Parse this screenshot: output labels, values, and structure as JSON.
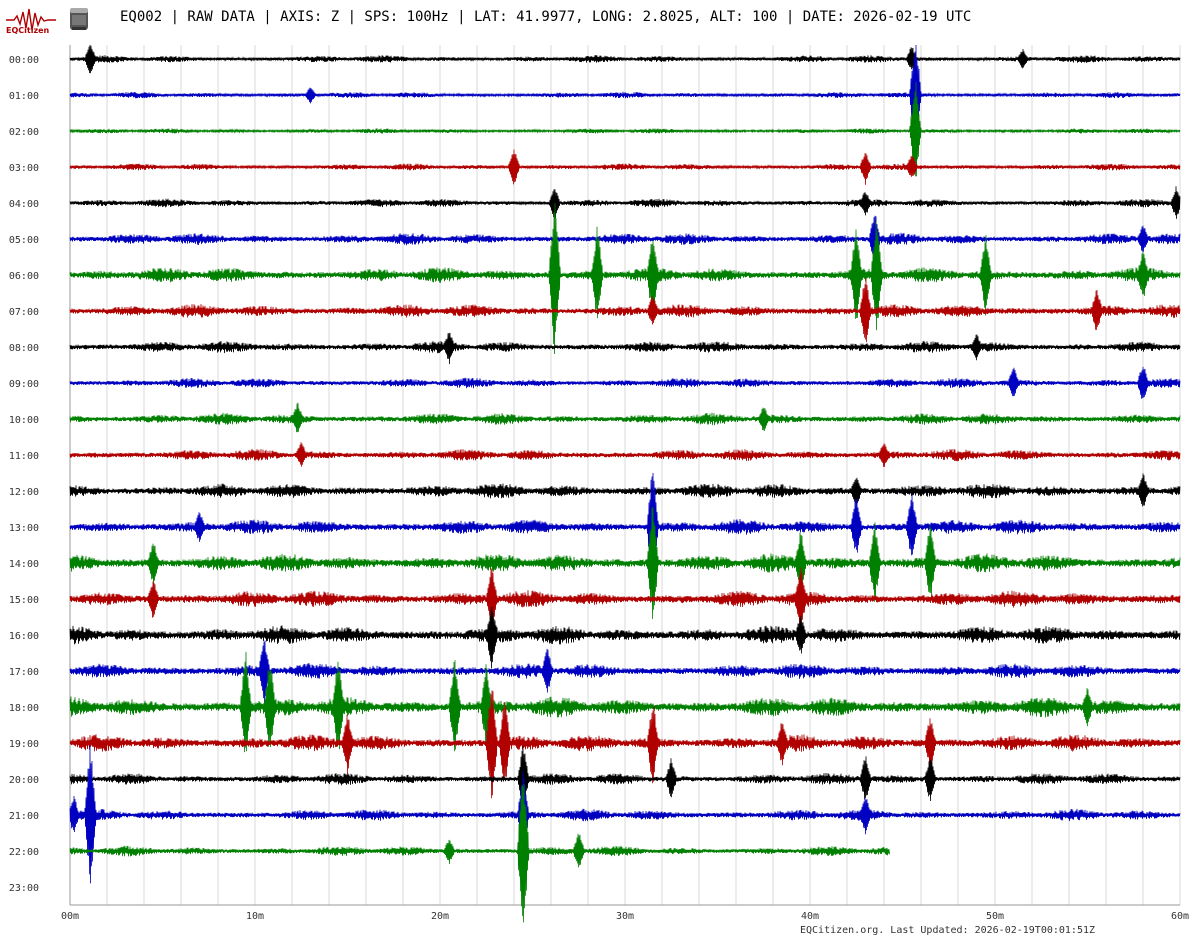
{
  "header": {
    "title": "EQ002 | RAW DATA | AXIS: Z | SPS: 100Hz | LAT: 41.9977, LONG: 2.8025, ALT: 100 | DATE: 2026-02-19 UTC"
  },
  "logo": {
    "text": "EQCitizen"
  },
  "footer": {
    "text": "EQCitizen.org. Last Updated: 2026-02-19T00:01:51Z"
  },
  "colors": {
    "trace_cycle": [
      "#000000",
      "#0000c0",
      "#008000",
      "#b00000"
    ],
    "grid": "#d8d8d8",
    "axis": "#999999"
  },
  "chart_data": {
    "type": "line",
    "x_unit": "minutes",
    "xlim": [
      0,
      60
    ],
    "x_ticks": [
      {
        "value": 0,
        "label": "00m"
      },
      {
        "value": 10,
        "label": "10m"
      },
      {
        "value": 20,
        "label": "20m"
      },
      {
        "value": 30,
        "label": "30m"
      },
      {
        "value": 40,
        "label": "40m"
      },
      {
        "value": 50,
        "label": "50m"
      },
      {
        "value": 60,
        "label": "60m"
      }
    ],
    "rows": [
      {
        "label": "00:00",
        "end_minute": 60,
        "noise": 0.22,
        "spikes": [
          [
            1.1,
            0.5,
            -1
          ],
          [
            45.5,
            0.4,
            1
          ],
          [
            51.5,
            0.3,
            1
          ]
        ]
      },
      {
        "label": "01:00",
        "end_minute": 60,
        "noise": 0.18,
        "spikes": [
          [
            45.7,
            1.8,
            1
          ],
          [
            13,
            0.25,
            1
          ]
        ]
      },
      {
        "label": "02:00",
        "end_minute": 60,
        "noise": 0.15,
        "spikes": [
          [
            45.7,
            1.6,
            1
          ]
        ]
      },
      {
        "label": "03:00",
        "end_minute": 60,
        "noise": 0.2,
        "spikes": [
          [
            24,
            0.55,
            1
          ],
          [
            43,
            0.5,
            1
          ],
          [
            45.5,
            0.4,
            -1
          ]
        ]
      },
      {
        "label": "04:00",
        "end_minute": 60,
        "noise": 0.25,
        "spikes": [
          [
            26.2,
            0.5,
            -1
          ],
          [
            59.8,
            0.5,
            1
          ],
          [
            43,
            0.4,
            1
          ]
        ]
      },
      {
        "label": "05:00",
        "end_minute": 60,
        "noise": 0.35,
        "spikes": [
          [
            58,
            0.45,
            1
          ],
          [
            43.5,
            0.8,
            1
          ]
        ]
      },
      {
        "label": "06:00",
        "end_minute": 60,
        "noise": 0.45,
        "spikes": [
          [
            26.2,
            2.4,
            1
          ],
          [
            28.5,
            1.5,
            1
          ],
          [
            31.5,
            1.4,
            1
          ],
          [
            42.5,
            1.5,
            1
          ],
          [
            43.6,
            1.8,
            1
          ],
          [
            49.5,
            1.2,
            1
          ],
          [
            58,
            0.8,
            1
          ]
        ]
      },
      {
        "label": "07:00",
        "end_minute": 60,
        "noise": 0.4,
        "spikes": [
          [
            55.5,
            0.7,
            1
          ],
          [
            43,
            1.1,
            1
          ],
          [
            31.5,
            0.5,
            -1
          ]
        ]
      },
      {
        "label": "08:00",
        "end_minute": 60,
        "noise": 0.35,
        "spikes": [
          [
            20.5,
            0.5,
            1
          ],
          [
            49,
            0.4,
            1
          ]
        ]
      },
      {
        "label": "09:00",
        "end_minute": 60,
        "noise": 0.3,
        "spikes": [
          [
            58,
            0.6,
            1
          ],
          [
            51,
            0.5,
            -1
          ]
        ]
      },
      {
        "label": "10:00",
        "end_minute": 60,
        "noise": 0.35,
        "spikes": [
          [
            12.3,
            0.5,
            1
          ],
          [
            37.5,
            0.4,
            -1
          ]
        ]
      },
      {
        "label": "11:00",
        "end_minute": 60,
        "noise": 0.35,
        "spikes": [
          [
            44,
            0.4,
            1
          ],
          [
            12.5,
            0.4,
            1
          ]
        ]
      },
      {
        "label": "12:00",
        "end_minute": 60,
        "noise": 0.45,
        "spikes": [
          [
            58,
            0.55,
            1
          ],
          [
            42.5,
            0.5,
            1
          ]
        ]
      },
      {
        "label": "13:00",
        "end_minute": 60,
        "noise": 0.45,
        "spikes": [
          [
            31.5,
            1.9,
            -1
          ],
          [
            42.5,
            0.9,
            1
          ],
          [
            45.5,
            1.0,
            1
          ],
          [
            7,
            0.5,
            -1
          ]
        ]
      },
      {
        "label": "14:00",
        "end_minute": 60,
        "noise": 0.55,
        "spikes": [
          [
            31.5,
            1.8,
            -1
          ],
          [
            39.5,
            1.0,
            1
          ],
          [
            46.5,
            1.2,
            1
          ],
          [
            43.5,
            1.2,
            1
          ],
          [
            4.5,
            0.7,
            1
          ]
        ]
      },
      {
        "label": "15:00",
        "end_minute": 60,
        "noise": 0.5,
        "spikes": [
          [
            22.8,
            1.0,
            1
          ],
          [
            39.5,
            1.0,
            -1
          ],
          [
            4.5,
            0.6,
            1
          ]
        ]
      },
      {
        "label": "16:00",
        "end_minute": 60,
        "noise": 0.55,
        "spikes": [
          [
            22.8,
            1.0,
            1
          ],
          [
            39.5,
            0.6,
            -1
          ]
        ]
      },
      {
        "label": "17:00",
        "end_minute": 60,
        "noise": 0.45,
        "spikes": [
          [
            25.8,
            0.7,
            1
          ],
          [
            10.5,
            1.0,
            -1
          ]
        ]
      },
      {
        "label": "18:00",
        "end_minute": 60,
        "noise": 0.6,
        "spikes": [
          [
            9.5,
            1.6,
            1
          ],
          [
            10.8,
            1.5,
            1
          ],
          [
            14.5,
            1.5,
            -1
          ],
          [
            20.8,
            1.5,
            1
          ],
          [
            22.5,
            1.3,
            1
          ],
          [
            55,
            0.6,
            1
          ]
        ]
      },
      {
        "label": "19:00",
        "end_minute": 60,
        "noise": 0.5,
        "spikes": [
          [
            22.8,
            1.8,
            1
          ],
          [
            23.5,
            1.4,
            -1
          ],
          [
            31.5,
            1.3,
            1
          ],
          [
            46.5,
            0.8,
            1
          ],
          [
            38.5,
            0.7,
            1
          ],
          [
            15,
            0.9,
            -1
          ]
        ]
      },
      {
        "label": "20:00",
        "end_minute": 60,
        "noise": 0.35,
        "spikes": [
          [
            24.5,
            1.0,
            -1
          ],
          [
            32.5,
            0.6,
            1
          ],
          [
            43,
            0.7,
            -1
          ],
          [
            46.5,
            0.7,
            1
          ]
        ]
      },
      {
        "label": "21:00",
        "end_minute": 60,
        "noise": 0.35,
        "spikes": [
          [
            1.1,
            2.2,
            -1
          ],
          [
            0.2,
            0.6,
            1
          ],
          [
            24.5,
            1.3,
            1
          ],
          [
            43,
            0.6,
            1
          ]
        ]
      },
      {
        "label": "22:00",
        "end_minute": 44.3,
        "noise": 0.3,
        "spikes": [
          [
            24.5,
            2.6,
            -1
          ],
          [
            27.5,
            0.6,
            1
          ],
          [
            20.5,
            0.4,
            1
          ]
        ]
      },
      {
        "label": "23:00",
        "end_minute": 0,
        "noise": 0,
        "spikes": []
      }
    ]
  }
}
